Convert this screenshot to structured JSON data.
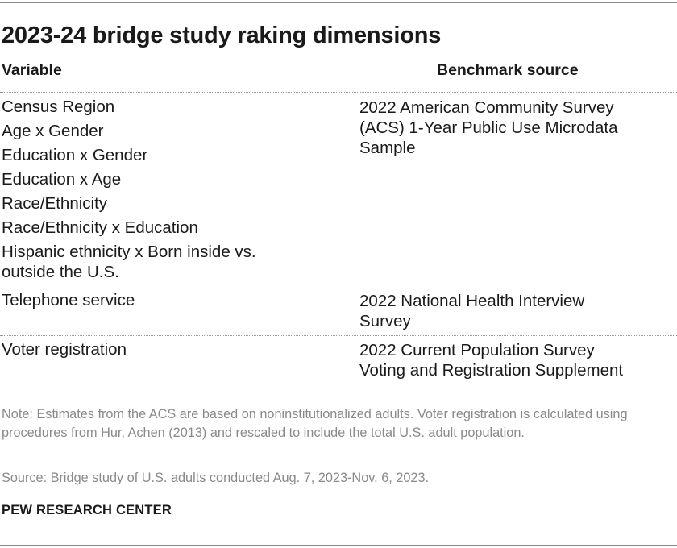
{
  "title": "2023-24 bridge study raking dimensions",
  "columns": {
    "variable": "Variable",
    "benchmark": "Benchmark source"
  },
  "rows": [
    {
      "variables": [
        "Census Region",
        "Age x Gender",
        "Education x Gender",
        "Education x Age",
        "Race/Ethnicity",
        "Race/Ethnicity x Education"
      ],
      "variables_wrapped": [
        "Hispanic ethnicity x Born inside vs.",
        "outside the U.S."
      ],
      "source_lines": [
        "2022 American Community Survey",
        "(ACS) 1-Year Public Use Microdata",
        "Sample"
      ]
    },
    {
      "variables": [
        "Telephone service"
      ],
      "source_lines": [
        "2022 National Health Interview",
        "Survey"
      ]
    },
    {
      "variables": [
        "Voter registration"
      ],
      "source_lines": [
        "2022 Current Population Survey",
        "Voting and Registration Supplement"
      ]
    }
  ],
  "note": "Note: Estimates from the ACS are based on noninstitutionalized adults. Voter registration is calculated using procedures from Hur, Achen (2013) and rescaled to include the total U.S. adult population.",
  "source": "Source: Bridge study of U.S. adults conducted Aug. 7, 2023-Nov. 6, 2023.",
  "brand": "PEW RESEARCH CENTER"
}
